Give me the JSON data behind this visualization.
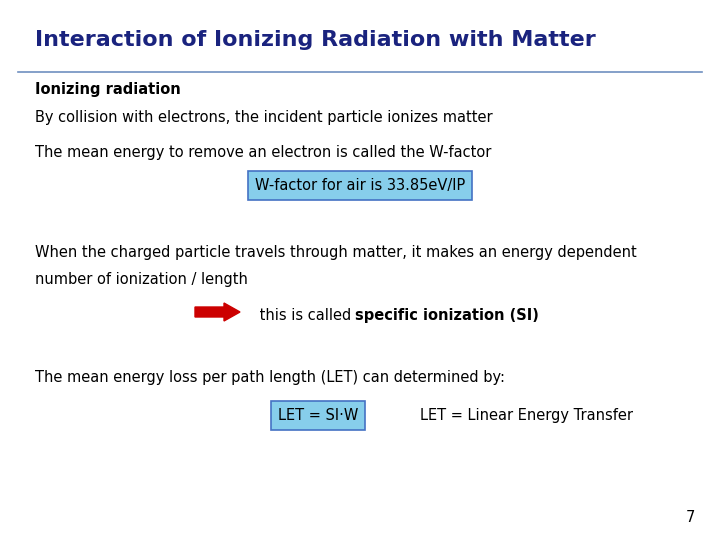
{
  "title": "Interaction of Ionizing Radiation with Matter",
  "title_color": "#1a237e",
  "title_fontsize": 16,
  "background_color": "#ffffff",
  "text_color": "#000000",
  "section_header": "Ionizing radiation",
  "line1": "By collision with electrons, the incident particle ionizes matter",
  "line2": "The mean energy to remove an electron is called the W-factor",
  "box1_text": "W-factor for air is 33.85eV/IP",
  "box1_bg": "#87CEEB",
  "box1_border": "#4472c4",
  "line3a": "When the charged particle travels through matter, it makes an energy dependent",
  "line3b": "number of ionization / length",
  "arrow_color": "#cc0000",
  "si_text_plain": " this is called ",
  "si_text_bold": "specific ionization (SI)",
  "line4": "The mean energy loss per path length (LET) can determined by:",
  "box2_text": "LET = SI·W",
  "box2_bg": "#87CEEB",
  "box2_border": "#4472c4",
  "let_text": "LET = Linear Energy Transfer",
  "page_number": "7",
  "line_color": "#7090c0"
}
